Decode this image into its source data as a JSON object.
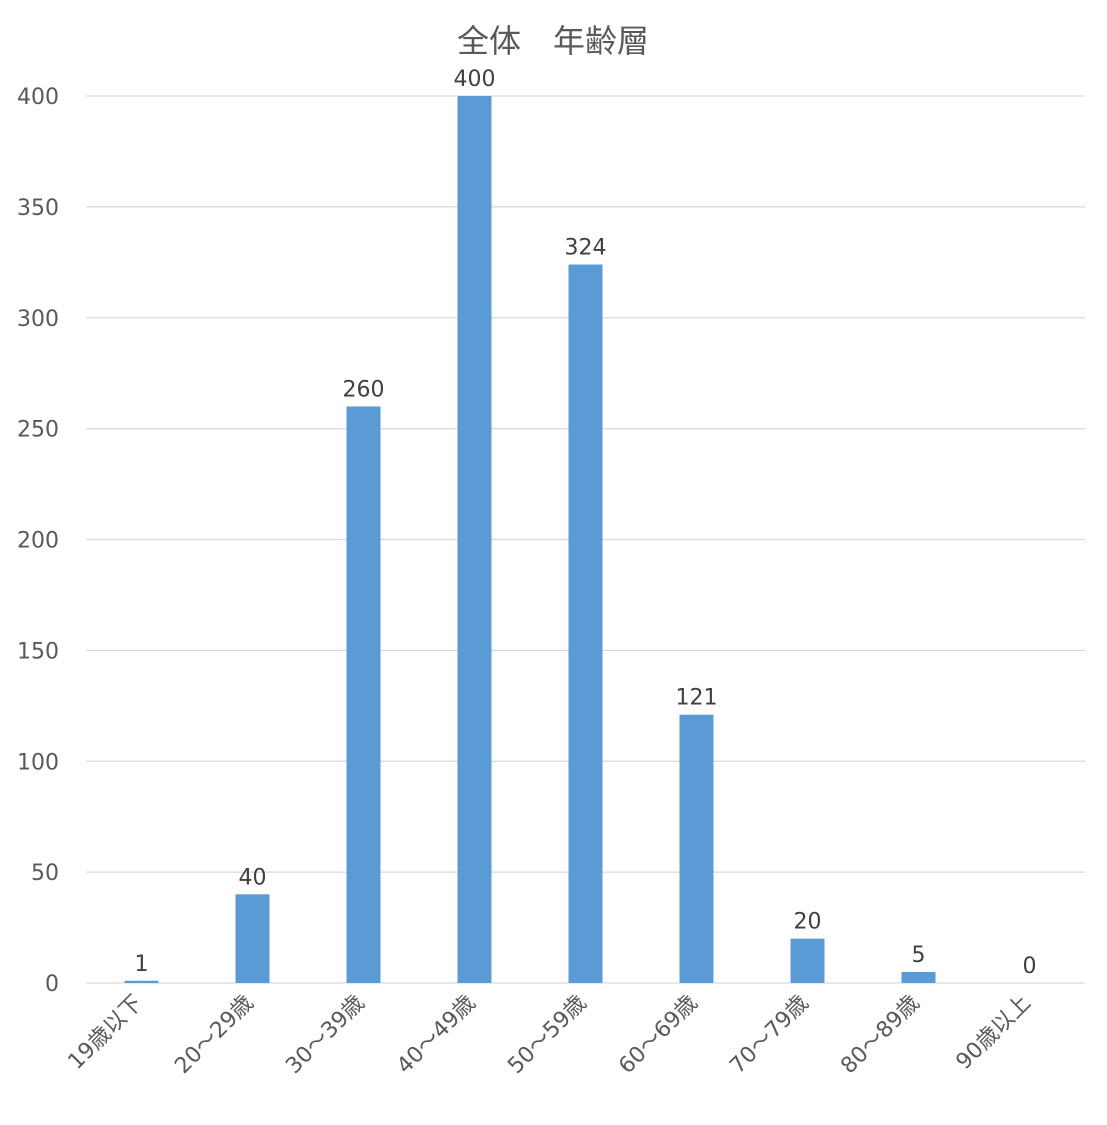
{
  "chart_data": {
    "type": "bar",
    "title": "全体　年齢層",
    "xlabel": "",
    "ylabel": "",
    "categories": [
      "19歳以下",
      "20～29歳",
      "30～39歳",
      "40～49歳",
      "50～59歳",
      "60～69歳",
      "70～79歳",
      "80～89歳",
      "90歳以上"
    ],
    "values": [
      1,
      40,
      260,
      400,
      324,
      121,
      20,
      5,
      0
    ],
    "data_labels": [
      "1",
      "40",
      "260",
      "400",
      "324",
      "121",
      "20",
      "5",
      "0"
    ],
    "ylim": [
      0,
      400
    ],
    "yticks": [
      0,
      50,
      100,
      150,
      200,
      250,
      300,
      350,
      400
    ],
    "ytick_labels": [
      "0",
      "50",
      "100",
      "150",
      "200",
      "250",
      "300",
      "350",
      "400"
    ],
    "grid": true,
    "legend": "none",
    "bar_color": "#5b9bd5",
    "grid_color": "#d9d9d9",
    "text_color": "#595959"
  }
}
